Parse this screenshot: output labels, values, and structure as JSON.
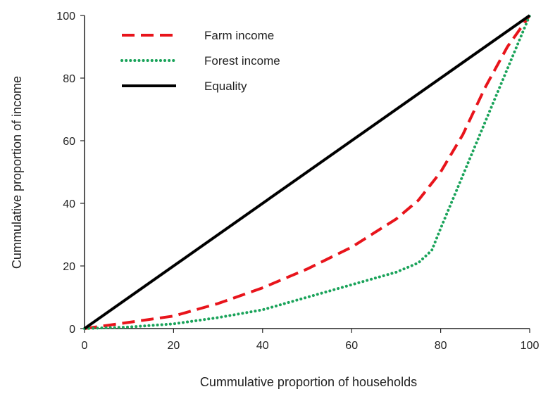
{
  "chart_data": {
    "type": "line",
    "title": "",
    "xlabel": "Cummulative proportion of households",
    "ylabel": "Cummulative proportion of income",
    "xlim": [
      0,
      100
    ],
    "ylim": [
      0,
      100
    ],
    "x_ticks": [
      0,
      20,
      40,
      60,
      80,
      100
    ],
    "y_ticks": [
      0,
      20,
      40,
      60,
      80,
      100
    ],
    "grid": false,
    "legend_position": "top-left",
    "series": [
      {
        "name": "Farm income",
        "color": "#e8141b",
        "style": "dashed",
        "x": [
          0,
          5,
          10,
          20,
          30,
          40,
          50,
          60,
          70,
          75,
          80,
          85,
          90,
          95,
          100
        ],
        "y": [
          0,
          1,
          2,
          4,
          8,
          13,
          19,
          26,
          35,
          41,
          50,
          62,
          77,
          90,
          100
        ]
      },
      {
        "name": "Forest income",
        "color": "#1aa35a",
        "style": "dotted",
        "x": [
          0,
          10,
          20,
          30,
          40,
          50,
          60,
          70,
          75,
          78,
          80,
          85,
          90,
          95,
          100
        ],
        "y": [
          0,
          0.5,
          1.5,
          3.5,
          6,
          10,
          14,
          18,
          21,
          25,
          32,
          49,
          66,
          83,
          100
        ]
      },
      {
        "name": "Equality",
        "color": "#000000",
        "style": "solid",
        "x": [
          0,
          100
        ],
        "y": [
          0,
          100
        ]
      }
    ]
  }
}
